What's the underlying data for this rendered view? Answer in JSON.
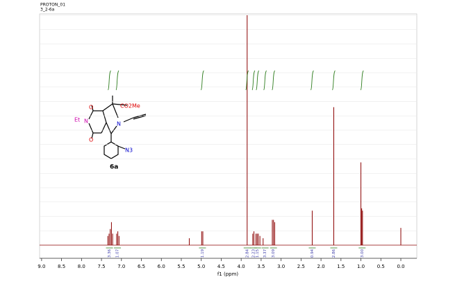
{
  "chart_data": {
    "type": "nmr",
    "header": [
      "PROTON_01",
      "3_2-6a"
    ],
    "xlabel": "f1 (ppm)",
    "xlim": [
      9.05,
      -0.4
    ],
    "ylim": [
      0,
      100
    ],
    "xticks": [
      {
        "value": 9,
        "label": "9.0"
      },
      8.5,
      {
        "value": 8,
        "label": "8.0"
      },
      7.5,
      {
        "value": 7,
        "label": "7.0"
      },
      6.5,
      {
        "value": 6,
        "label": "6.0"
      },
      5.5,
      {
        "value": 5,
        "label": "5.0"
      },
      4.5,
      {
        "value": 4,
        "label": "4.0"
      },
      3.5,
      {
        "value": 3,
        "label": "3.0"
      },
      2.5,
      {
        "value": 2,
        "label": "2.0"
      },
      1.5,
      {
        "value": 1,
        "label": "1.0"
      },
      0.5,
      {
        "value": 0,
        "label": "0.0"
      }
    ],
    "grid": true,
    "color": "#8b0000",
    "integral_color": "#2e7d1e",
    "label_color": "#3a3aa8",
    "x": [
      7.34,
      7.31,
      7.28,
      7.25,
      7.22,
      7.12,
      7.09,
      7.06,
      5.3,
      4.99,
      4.96,
      3.85,
      3.71,
      3.68,
      3.63,
      3.6,
      3.57,
      3.53,
      3.45,
      3.22,
      3.19,
      3.16,
      2.22,
      1.68,
      1.0,
      0.98,
      0.96,
      0.0
    ],
    "values": [
      4,
      5,
      7,
      10,
      5,
      5,
      6,
      4,
      3,
      6,
      6,
      100,
      5,
      6,
      5,
      5,
      5,
      4,
      3,
      11,
      11,
      10,
      15,
      60,
      36,
      16,
      15,
      7.5
    ],
    "integrals": [
      {
        "ppm": 7.3,
        "label": "3.36"
      },
      {
        "ppm": 7.1,
        "label": "1.07"
      },
      {
        "ppm": 4.97,
        "label": "1.19"
      },
      {
        "ppm": 3.85,
        "label": "2.84"
      },
      {
        "ppm": 3.69,
        "label": "2.23"
      },
      {
        "ppm": 3.59,
        "label": "1.15"
      },
      {
        "ppm": 3.4,
        "label": "3.37"
      },
      {
        "ppm": 3.19,
        "label": "3.09"
      },
      {
        "ppm": 2.22,
        "label": "0.94"
      },
      {
        "ppm": 1.68,
        "label": "2.86"
      },
      {
        "ppm": 0.97,
        "label": "3.00"
      }
    ],
    "molecule": {
      "labels": [
        "O",
        "Et",
        "N",
        "O",
        "N",
        "CO2Me",
        "N3",
        "6a"
      ]
    }
  }
}
